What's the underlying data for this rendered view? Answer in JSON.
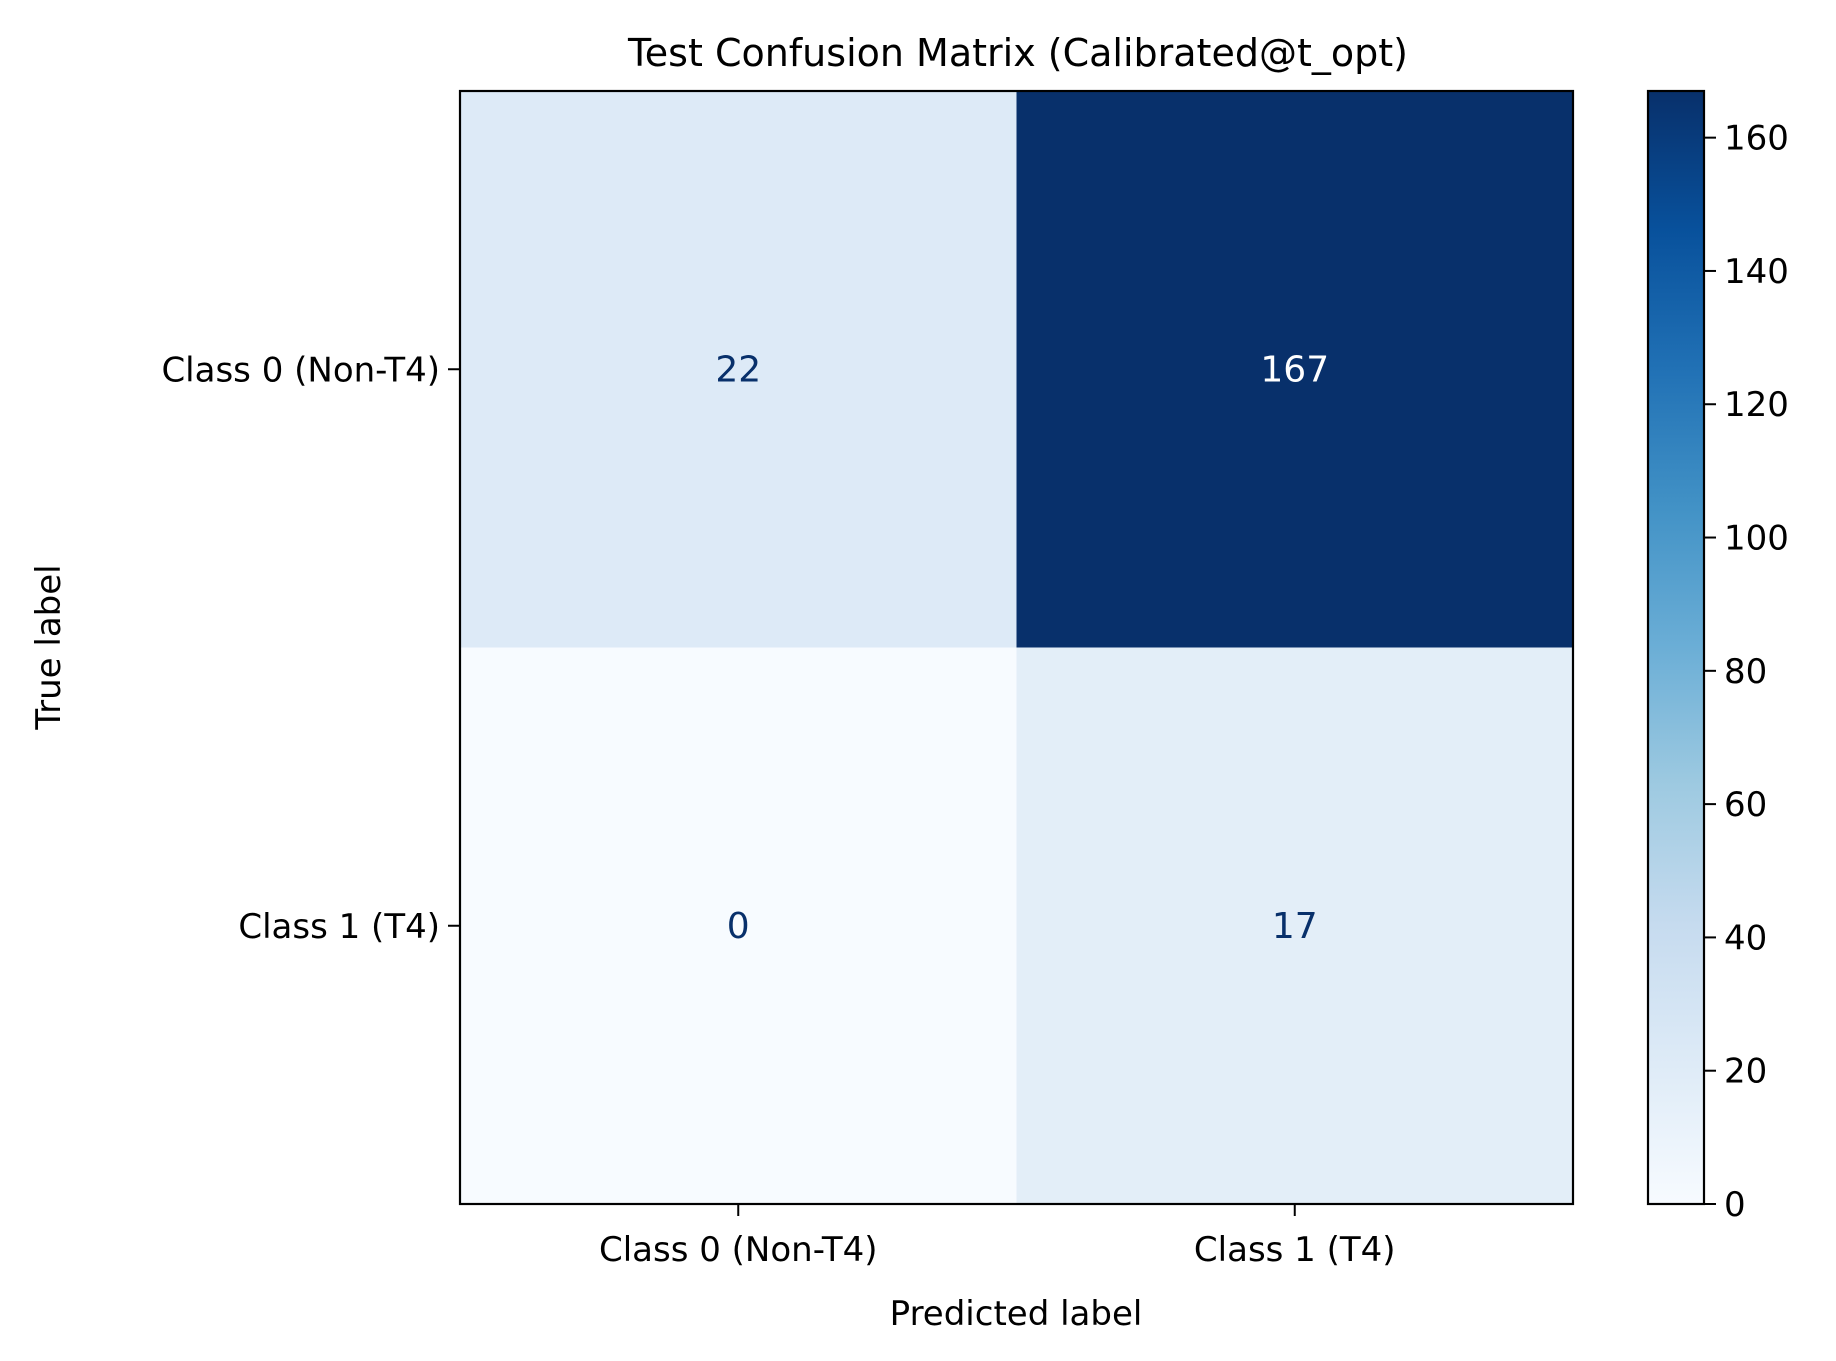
{
  "chart_data": {
    "type": "heatmap",
    "title": "Test Confusion Matrix (Calibrated@t_opt)",
    "xlabel": "Predicted label",
    "ylabel": "True label",
    "x_categories": [
      "Class 0 (Non-T4)",
      "Class 1 (T4)"
    ],
    "y_categories": [
      "Class 0 (Non-T4)",
      "Class 1 (T4)"
    ],
    "matrix": [
      [
        22,
        167
      ],
      [
        0,
        17
      ]
    ],
    "colormap": "Blues",
    "colorbar": {
      "range": [
        0,
        167
      ],
      "ticks": [
        0,
        20,
        40,
        60,
        80,
        100,
        120,
        140,
        160
      ]
    },
    "text_colors": {
      "light": "#ffffff",
      "dark": "#08306b"
    }
  }
}
